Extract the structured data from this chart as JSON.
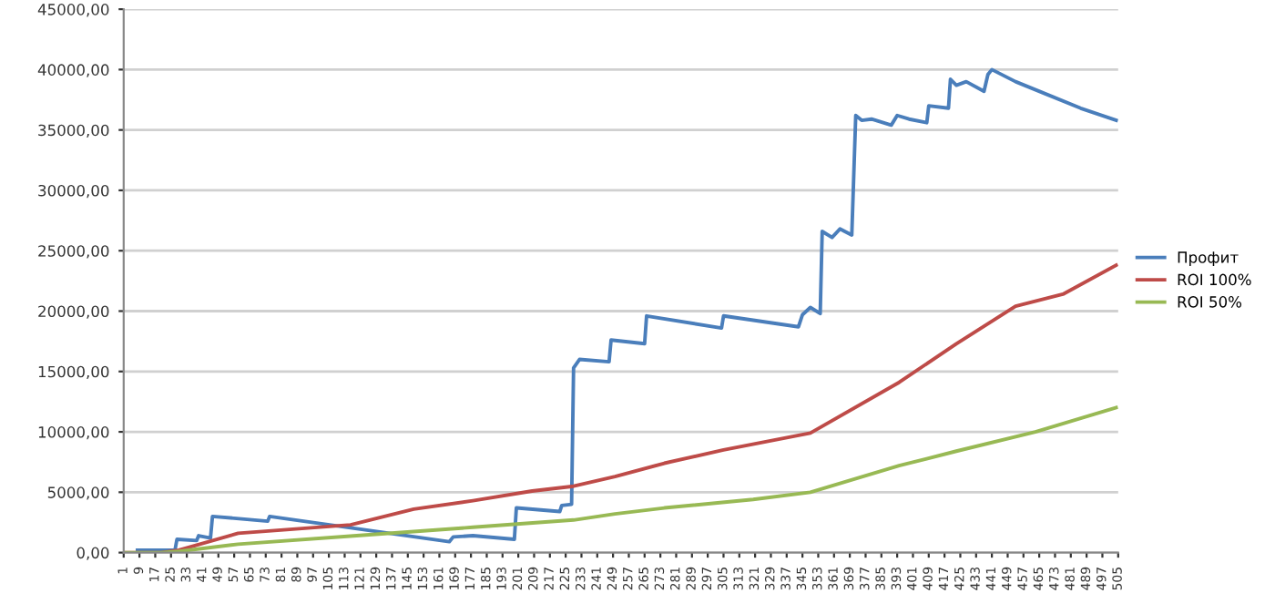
{
  "chart_data": {
    "type": "line",
    "xlim": [
      1,
      505
    ],
    "xticks": [
      1,
      9,
      17,
      25,
      33,
      41,
      49,
      57,
      65,
      73,
      81,
      89,
      97,
      105,
      113,
      121,
      129,
      137,
      145,
      153,
      161,
      169,
      177,
      185,
      193,
      201,
      209,
      217,
      225,
      233,
      241,
      249,
      257,
      265,
      273,
      281,
      289,
      297,
      305,
      313,
      321,
      329,
      337,
      345,
      353,
      361,
      369,
      377,
      385,
      393,
      401,
      409,
      417,
      425,
      433,
      441,
      449,
      457,
      465,
      473,
      481,
      489,
      497,
      505
    ],
    "ylim": [
      0,
      45000
    ],
    "yticks": [
      {
        "value": 0,
        "label": "0,00"
      },
      {
        "value": 5000,
        "label": "5000,00"
      },
      {
        "value": 10000,
        "label": "10000,00"
      },
      {
        "value": 15000,
        "label": "15000,00"
      },
      {
        "value": 20000,
        "label": "20000,00"
      },
      {
        "value": 25000,
        "label": "25000,00"
      },
      {
        "value": 30000,
        "label": "30000,00"
      },
      {
        "value": 35000,
        "label": "35000,00"
      },
      {
        "value": 40000,
        "label": "40000,00"
      },
      {
        "value": 45000,
        "label": "45000,00"
      }
    ],
    "grid": "y",
    "legend": "right",
    "marker": "none",
    "line_style": "solid",
    "series": [
      {
        "name": "Профит",
        "color": "#4a7ebb",
        "x": [
          8,
          27,
          28,
          38,
          39,
          45,
          46,
          74,
          75,
          166,
          168,
          178,
          199,
          200,
          222,
          223,
          228,
          229,
          232,
          247,
          248,
          265,
          266,
          304,
          305,
          343,
          345,
          349,
          354,
          355,
          360,
          364,
          370,
          372,
          375,
          380,
          390,
          393,
          399,
          408,
          409,
          419,
          420,
          423,
          428,
          437,
          439,
          441,
          453,
          468,
          486,
          504
        ],
        "values": [
          200,
          200,
          1100,
          1000,
          1400,
          1200,
          3000,
          2600,
          3000,
          900,
          1300,
          1400,
          1100,
          3700,
          3400,
          3900,
          4000,
          15300,
          16000,
          15800,
          17600,
          17300,
          19600,
          18600,
          19600,
          18700,
          19700,
          20300,
          19800,
          26600,
          26100,
          26800,
          26300,
          36200,
          35800,
          35900,
          35400,
          36200,
          35900,
          35600,
          37000,
          36800,
          39200,
          38700,
          39000,
          38200,
          39600,
          40000,
          39000,
          38000,
          36800,
          35800
        ]
      },
      {
        "name": "ROI 100%",
        "color": "#be4b48",
        "x": [
          1,
          20,
          29,
          59,
          116,
          148,
          178,
          208,
          229,
          250,
          275,
          305,
          349,
          394,
          423,
          453,
          477,
          504
        ],
        "values": [
          0,
          0,
          200,
          1600,
          2300,
          3600,
          4300,
          5100,
          5500,
          6300,
          7400,
          8500,
          9900,
          14100,
          17300,
          20400,
          21400,
          23800
        ]
      },
      {
        "name": "ROI 50%",
        "color": "#98b954",
        "x": [
          1,
          20,
          29,
          59,
          119,
          178,
          229,
          250,
          275,
          320,
          349,
          394,
          423,
          463,
          504
        ],
        "values": [
          0,
          0,
          100,
          700,
          1400,
          2100,
          2700,
          3200,
          3700,
          4400,
          5000,
          7200,
          8400,
          10000,
          12000
        ]
      }
    ]
  }
}
